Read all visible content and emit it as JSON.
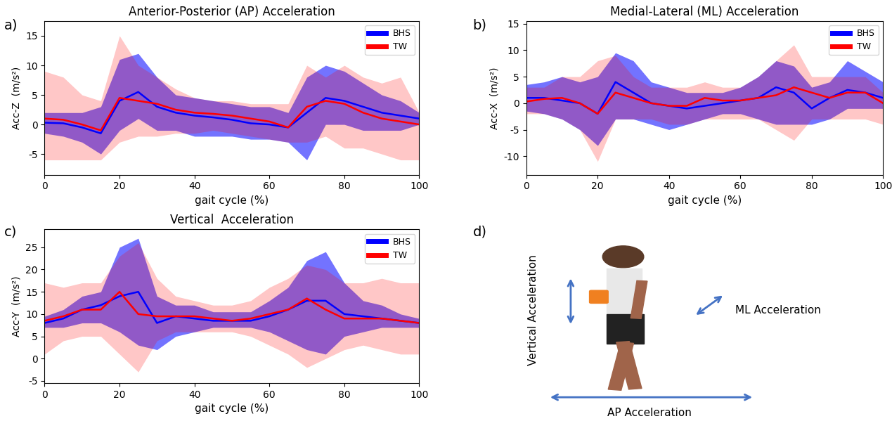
{
  "chart_data": [
    {
      "type": "line",
      "panel_label": "a)",
      "title": "Anterior-Posterior (AP) Acceleration",
      "x_label": "gait cycle (%)",
      "y_label": "Acc-Z  (m/s²)",
      "x": [
        0,
        5,
        10,
        15,
        20,
        25,
        30,
        35,
        40,
        45,
        50,
        55,
        60,
        65,
        70,
        75,
        80,
        85,
        90,
        95,
        100
      ],
      "xlim": [
        0,
        100
      ],
      "xticks": [
        0,
        20,
        40,
        60,
        80,
        100
      ],
      "ylim": [
        -8.5,
        17.5
      ],
      "yticks": [
        -5,
        0,
        5,
        10,
        15
      ],
      "legend": "upper right",
      "series": [
        {
          "name": "BHS",
          "color": "#0000ff",
          "values": [
            0.3,
            0.2,
            -0.5,
            -1.5,
            4,
            5.5,
            3,
            2,
            1.5,
            1.2,
            0.8,
            0.2,
            0,
            -0.5,
            2,
            4.5,
            4,
            3,
            2,
            1.5,
            1
          ],
          "lower": [
            -1.5,
            -2,
            -3,
            -5,
            -1,
            1,
            -1,
            -1,
            -2,
            -2,
            -2,
            -2.5,
            -2.5,
            -3,
            -6,
            0,
            0,
            -1,
            -1,
            -1,
            0
          ],
          "upper": [
            2,
            2,
            2,
            3,
            11,
            12,
            8,
            5,
            4.5,
            4,
            3.5,
            3,
            3,
            2,
            8,
            10,
            9,
            7,
            5,
            4,
            2
          ]
        },
        {
          "name": "TW",
          "color": "#ff0000",
          "values": [
            1,
            0.8,
            0,
            -1,
            4.5,
            4,
            3.5,
            2.5,
            2,
            1.8,
            1.5,
            1,
            0.5,
            -0.5,
            3,
            4,
            3.5,
            2,
            1,
            0.5,
            0
          ],
          "lower": [
            -6,
            -6,
            -6,
            -6,
            -3,
            -2,
            -2,
            -1.5,
            -1.5,
            -1,
            -1.5,
            -2,
            -2.5,
            -3,
            -3,
            -2,
            -4,
            -4,
            -5,
            -6,
            -6
          ],
          "upper": [
            9,
            8,
            5,
            4,
            15,
            10,
            8,
            6,
            4.5,
            4,
            4,
            3.5,
            3.5,
            3.5,
            10,
            8,
            10,
            8,
            7,
            8,
            2
          ]
        }
      ]
    },
    {
      "type": "line",
      "panel_label": "b)",
      "title": "Medial-Lateral (ML) Acceleration",
      "x_label": "gait cycle (%)",
      "y_label": "Acc-X  (m/s²)",
      "x": [
        0,
        5,
        10,
        15,
        20,
        25,
        30,
        35,
        40,
        45,
        50,
        55,
        60,
        65,
        70,
        75,
        80,
        85,
        90,
        95,
        100
      ],
      "xlim": [
        0,
        100
      ],
      "xticks": [
        0,
        20,
        40,
        60,
        80,
        100
      ],
      "ylim": [
        -13.5,
        15.5
      ],
      "yticks": [
        -10,
        -5,
        0,
        5,
        10,
        15
      ],
      "legend": "upper right",
      "series": [
        {
          "name": "BHS",
          "color": "#0000ff",
          "values": [
            1,
            1,
            0.5,
            0,
            -2,
            4,
            2,
            0,
            -0.5,
            -1,
            -0.5,
            0,
            0.5,
            1,
            3,
            2,
            -1,
            1,
            2.5,
            2,
            1
          ],
          "lower": [
            -1.5,
            -2,
            -3,
            -5,
            -8,
            -3,
            -3,
            -4,
            -5,
            -4,
            -3,
            -2,
            -2,
            -3,
            -4,
            -4,
            -4,
            -3,
            -1,
            -1,
            -1
          ],
          "upper": [
            3.5,
            4,
            5,
            4,
            5,
            9.5,
            8,
            4,
            3,
            2,
            2,
            2,
            3,
            5,
            8,
            7,
            3,
            4,
            8,
            6,
            4
          ]
        },
        {
          "name": "TW",
          "color": "#ff0000",
          "values": [
            0.3,
            0.8,
            1,
            0,
            -2,
            2,
            1,
            0,
            -0.5,
            -0.5,
            1,
            0.5,
            0.5,
            1,
            1.5,
            3,
            2,
            1,
            2,
            2,
            0
          ],
          "lower": [
            -2,
            -2,
            -3,
            -5,
            -11,
            -3,
            -3,
            -3,
            -4,
            -4,
            -3,
            -3,
            -3,
            -3,
            -5,
            -7,
            -3,
            -3,
            -3,
            -3,
            -4
          ],
          "upper": [
            3,
            3,
            5,
            5,
            8,
            9,
            5,
            3,
            3,
            3,
            4,
            3,
            3,
            5,
            8,
            11,
            5,
            5,
            5,
            5,
            2
          ]
        }
      ]
    },
    {
      "type": "line",
      "panel_label": "c)",
      "title": "Vertical  Acceleration",
      "x_label": "gait cycle (%)",
      "y_label": "Acc-Y  (m/s²)",
      "x": [
        0,
        5,
        10,
        15,
        20,
        25,
        30,
        35,
        40,
        45,
        50,
        55,
        60,
        65,
        70,
        75,
        80,
        85,
        90,
        95,
        100
      ],
      "xlim": [
        0,
        100
      ],
      "xticks": [
        0,
        20,
        40,
        60,
        80,
        100
      ],
      "ylim": [
        -5.5,
        29
      ],
      "yticks": [
        -5,
        0,
        5,
        10,
        15,
        20,
        25
      ],
      "legend": "upper right",
      "series": [
        {
          "name": "BHS",
          "color": "#0000ff",
          "values": [
            8,
            9,
            11,
            12,
            14,
            15,
            8,
            9.5,
            9,
            8.5,
            8.5,
            8.5,
            9.5,
            11,
            13,
            13,
            10,
            9.5,
            9,
            8.5,
            8
          ],
          "lower": [
            7,
            7,
            8,
            8,
            6,
            3,
            2,
            5,
            6,
            7,
            7,
            7,
            6,
            4,
            2,
            1,
            5,
            6,
            7,
            7,
            7
          ],
          "upper": [
            9.5,
            11,
            14,
            15,
            25,
            27,
            14,
            12,
            12,
            10.5,
            10.5,
            10.5,
            13,
            16,
            22,
            24,
            17,
            13,
            12,
            10,
            9
          ]
        },
        {
          "name": "TW",
          "color": "#ff0000",
          "values": [
            8.5,
            9.5,
            11,
            11,
            15,
            10,
            9.5,
            9.5,
            9.5,
            9,
            8.5,
            9,
            10,
            11,
            13.5,
            11,
            9,
            9,
            9,
            8.5,
            8
          ],
          "lower": [
            1,
            4,
            5,
            5,
            1,
            -3,
            4,
            6,
            6,
            6,
            6,
            5,
            3,
            1,
            -2,
            0,
            2,
            3,
            2,
            1,
            1
          ],
          "upper": [
            17,
            16,
            17,
            17,
            23,
            26,
            18,
            14,
            13,
            12,
            12,
            13,
            16,
            18,
            21,
            20,
            17,
            17,
            18,
            17,
            17
          ]
        }
      ]
    }
  ],
  "diagram": {
    "panel_label": "d)",
    "arrows": {
      "vertical": "Vertical Acceleration",
      "ml": "ML Acceleration",
      "ap": "AP Acceleration"
    }
  }
}
